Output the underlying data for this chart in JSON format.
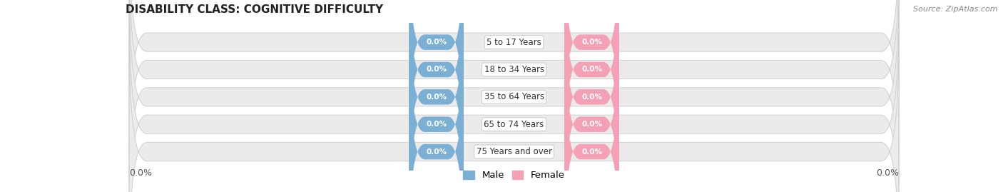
{
  "title": "DISABILITY CLASS: COGNITIVE DIFFICULTY",
  "source": "Source: ZipAtlas.com",
  "categories": [
    "5 to 17 Years",
    "18 to 34 Years",
    "35 to 64 Years",
    "65 to 74 Years",
    "75 Years and over"
  ],
  "male_values": [
    0.0,
    0.0,
    0.0,
    0.0,
    0.0
  ],
  "female_values": [
    0.0,
    0.0,
    0.0,
    0.0,
    0.0
  ],
  "male_color": "#7bafd4",
  "female_color": "#f4a0b5",
  "bar_bg_color": "#ebebeb",
  "bar_outline_color": "#d0d0d0",
  "left_label": "0.0%",
  "right_label": "0.0%",
  "male_legend": "Male",
  "female_legend": "Female",
  "title_fontsize": 11,
  "source_fontsize": 8,
  "tick_fontsize": 9,
  "background_color": "#ffffff",
  "cat_label_fontsize": 8.5,
  "val_label_fontsize": 7.5
}
